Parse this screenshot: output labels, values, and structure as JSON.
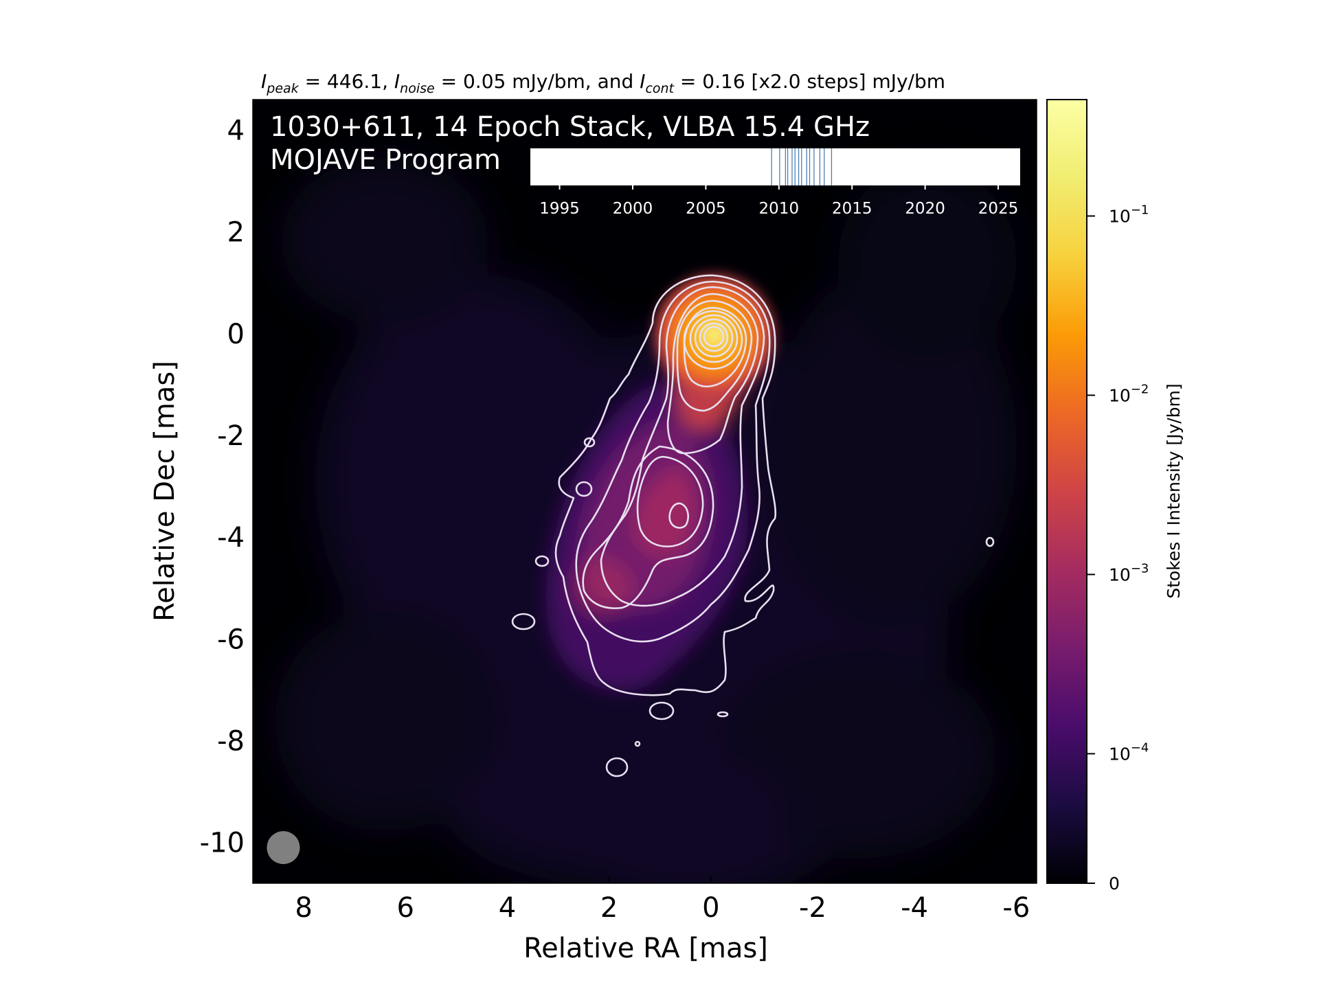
{
  "chart_data": {
    "type": "heatmap",
    "header": {
      "peak_label": "I",
      "peak_sub": "peak",
      "peak_value": " = 446.1, ",
      "noise_label": "I",
      "noise_sub": "noise",
      "noise_value": " = 0.05 mJy/bm, and ",
      "cont_label": "I",
      "cont_sub": "cont",
      "cont_value": " = 0.16 [x2.0 steps] mJy/bm"
    },
    "title_line1": "1030+611, 14 Epoch Stack, VLBA 15.4 GHz",
    "title_line2": "MOJAVE Program",
    "xlabel": "Relative RA [mas]",
    "ylabel": "Relative Dec [mas]",
    "xlim": [
      9,
      -6.4
    ],
    "ylim": [
      -10.8,
      4.6
    ],
    "xticks": [
      8,
      6,
      4,
      2,
      0,
      -2,
      -4,
      -6
    ],
    "xtick_labels": [
      "8",
      "6",
      "4",
      "2",
      "0",
      "-2",
      "-4",
      "-6"
    ],
    "yticks": [
      4,
      2,
      0,
      -2,
      -4,
      -6,
      -8,
      -10
    ],
    "ytick_labels": [
      "4",
      "2",
      "0",
      "-2",
      "-4",
      "-6",
      "-8",
      "-10"
    ],
    "colorbar": {
      "label": "Stokes I Intensity [Jy/bm]",
      "scale": "log",
      "tick_labels": [
        {
          "base": "10",
          "exp": "−1",
          "value": 0.1
        },
        {
          "base": "10",
          "exp": "−2",
          "value": 0.01
        },
        {
          "base": "10",
          "exp": "−3",
          "value": 0.001
        },
        {
          "base": "10",
          "exp": "−4",
          "value": 0.0001
        },
        {
          "base": "0",
          "exp": "",
          "value": 0
        }
      ],
      "colormap": "inferno"
    },
    "epoch_timeline": {
      "xlim": [
        1993,
        2026.5
      ],
      "ticks": [
        1995,
        2000,
        2005,
        2010,
        2015,
        2020,
        2025
      ],
      "tick_labels": [
        "1995",
        "2000",
        "2005",
        "2010",
        "2015",
        "2020",
        "2025"
      ],
      "epochs": [
        2009.5,
        2010.05,
        2010.45,
        2010.6,
        2010.9,
        2011.1,
        2011.35,
        2011.55,
        2011.9,
        2012.1,
        2012.4,
        2012.8,
        2013.1,
        2013.6
      ],
      "line_color": "#4a7fb0"
    },
    "peak_position": [
      0,
      -0.1
    ],
    "peak_jy_per_beam": 0.4461,
    "noise_jy_per_beam": 5e-05,
    "lowest_contour_jy_per_beam": 0.00016,
    "contour_step_factor": 2.0,
    "beam": {
      "ra": 8.4,
      "dec": -10.1,
      "diameter_mas": 0.65,
      "color": "#808080"
    },
    "colors": {
      "background": "#000004",
      "contour": "#e8e0f0"
    }
  }
}
